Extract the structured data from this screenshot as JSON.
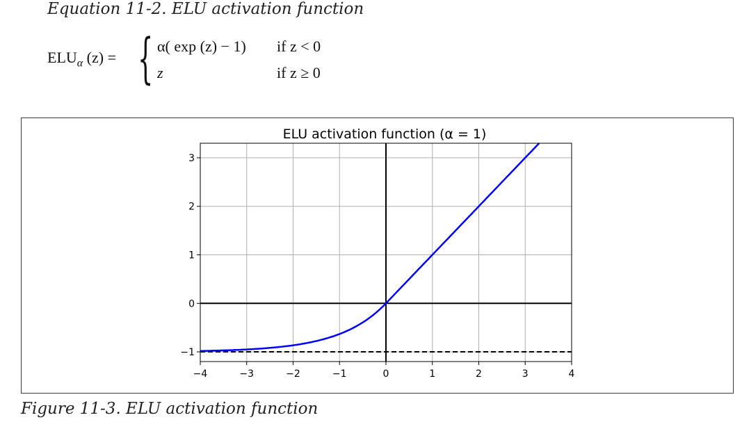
{
  "equation": {
    "caption": "Equation 11-2. ELU activation function",
    "lhs_name": "ELU",
    "lhs_subscript": "α",
    "lhs_arg": "(z) =",
    "case1_expr": "α( exp (z) − 1)",
    "case1_cond": "if  z < 0",
    "case2_expr": "z",
    "case2_cond": "if  z ≥ 0"
  },
  "figure": {
    "caption": "Figure 11-3. ELU activation function"
  },
  "chart_data": {
    "type": "line",
    "title": "ELU activation function (α = 1)",
    "xlabel": "",
    "ylabel": "",
    "xlim": [
      -4,
      4
    ],
    "ylim": [
      -1.2,
      3.3
    ],
    "xticks": [
      -4,
      -3,
      -2,
      -1,
      0,
      1,
      2,
      3,
      4
    ],
    "xtick_labels": [
      "−4",
      "−3",
      "−2",
      "−1",
      "0",
      "1",
      "2",
      "3",
      "4"
    ],
    "yticks": [
      -1,
      0,
      1,
      2,
      3
    ],
    "ytick_labels": [
      "−1",
      "0",
      "1",
      "2",
      "3"
    ],
    "grid": true,
    "alpha": 1,
    "series": [
      {
        "color": "#0000ff",
        "x": [
          -4.0,
          -3.5,
          -3.0,
          -2.5,
          -2.0,
          -1.5,
          -1.0,
          -0.75,
          -0.5,
          -0.25,
          0.0,
          1.0,
          2.0,
          3.0,
          3.3
        ],
        "y": [
          -0.98,
          -0.97,
          -0.95,
          -0.918,
          -0.865,
          -0.777,
          -0.632,
          -0.528,
          -0.393,
          -0.221,
          0.0,
          1.0,
          2.0,
          3.0,
          3.3
        ]
      }
    ],
    "reference_lines": [
      {
        "orientation": "horizontal",
        "value": 0,
        "style": "solid",
        "color": "#000000"
      },
      {
        "orientation": "vertical",
        "value": 0,
        "style": "solid",
        "color": "#000000"
      },
      {
        "orientation": "horizontal",
        "value": -1,
        "style": "dashed",
        "color": "#000000"
      }
    ]
  }
}
